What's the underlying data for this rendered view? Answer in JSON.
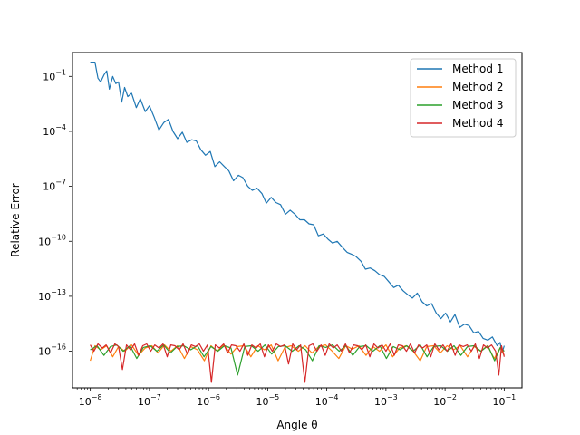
{
  "chart_data": {
    "type": "line",
    "xscale": "log",
    "yscale": "log",
    "xlabel": "Angle θ",
    "ylabel": "Relative Error",
    "xlim": [
      5e-09,
      0.2
    ],
    "ylim": [
      1e-18,
      2
    ],
    "xticks": [
      1e-08,
      1e-07,
      1e-06,
      1e-05,
      0.0001,
      0.001,
      0.01,
      0.1
    ],
    "xtick_labels": [
      {
        "base": "10",
        "exp": "−8"
      },
      {
        "base": "10",
        "exp": "−7"
      },
      {
        "base": "10",
        "exp": "−6"
      },
      {
        "base": "10",
        "exp": "−5"
      },
      {
        "base": "10",
        "exp": "−4"
      },
      {
        "base": "10",
        "exp": "−3"
      },
      {
        "base": "10",
        "exp": "−2"
      },
      {
        "base": "10",
        "exp": "−1"
      }
    ],
    "yticks": [
      1e-16,
      1e-13,
      1e-10,
      1e-07,
      0.0001,
      0.1
    ],
    "ytick_labels": [
      {
        "base": "10",
        "exp": "−16"
      },
      {
        "base": "10",
        "exp": "−13"
      },
      {
        "base": "10",
        "exp": "−10"
      },
      {
        "base": "10",
        "exp": "−7"
      },
      {
        "base": "10",
        "exp": "−4"
      },
      {
        "base": "10",
        "exp": "−1"
      }
    ],
    "grid": false,
    "legend_position": "top-right",
    "series": [
      {
        "name": "Method 1",
        "color": "#1f77b4",
        "x": [
          1e-08,
          1.12e-08,
          1.2e-08,
          1.35e-08,
          1.5e-08,
          1.7e-08,
          1.9e-08,
          2.1e-08,
          2.4e-08,
          2.7e-08,
          3e-08,
          3.4e-08,
          3.8e-08,
          4.3e-08,
          5e-08,
          6e-08,
          7e-08,
          8.5e-08,
          1e-07,
          1.2e-07,
          1.45e-07,
          1.75e-07,
          2.1e-07,
          2.5e-07,
          3e-07,
          3.6e-07,
          4.3e-07,
          5.2e-07,
          6.2e-07,
          7.4e-07,
          8.9e-07,
          1.07e-06,
          1.28e-06,
          1.54e-06,
          1.85e-06,
          2.2e-06,
          2.65e-06,
          3.2e-06,
          3.8e-06,
          4.6e-06,
          5.5e-06,
          6.6e-06,
          8e-06,
          9.5e-06,
          1.15e-05,
          1.38e-05,
          1.65e-05,
          2e-05,
          2.4e-05,
          2.9e-05,
          3.5e-05,
          4.2e-05,
          5e-05,
          6e-05,
          7.2e-05,
          8.7e-05,
          0.000105,
          0.000125,
          0.00015,
          0.00018,
          0.00022,
          0.00026,
          0.00031,
          0.00038,
          0.00045,
          0.00054,
          0.00065,
          0.00078,
          0.00094,
          0.00113,
          0.00135,
          0.00162,
          0.00195,
          0.00235,
          0.0028,
          0.0034,
          0.0041,
          0.0049,
          0.0059,
          0.0071,
          0.0085,
          0.0102,
          0.0123,
          0.0147,
          0.0177,
          0.0212,
          0.0255,
          0.0306,
          0.0367,
          0.044,
          0.053,
          0.063,
          0.076,
          0.085,
          0.092,
          0.1
        ],
        "y": [
          0.6,
          0.6,
          0.6,
          0.08,
          0.05,
          0.12,
          0.2,
          0.02,
          0.1,
          0.04,
          0.05,
          0.004,
          0.025,
          0.008,
          0.012,
          0.002,
          0.006,
          0.0012,
          0.0025,
          0.0006,
          0.00012,
          0.0003,
          0.00045,
          0.0001,
          4e-05,
          9e-05,
          2.5e-05,
          3.5e-05,
          3e-05,
          1e-05,
          5e-06,
          8e-06,
          1.2e-06,
          2.2e-06,
          1.2e-06,
          7e-07,
          2e-07,
          4e-07,
          3e-07,
          1e-07,
          6e-08,
          8e-08,
          4e-08,
          1.2e-08,
          2.5e-08,
          1.3e-08,
          1e-08,
          3e-09,
          5e-09,
          3e-09,
          1.5e-09,
          1.5e-09,
          9e-10,
          8e-10,
          2e-10,
          2.5e-10,
          1.3e-10,
          8e-11,
          1e-10,
          5e-11,
          2.5e-11,
          2e-11,
          1.5e-11,
          8e-12,
          3e-12,
          3.5e-12,
          2.5e-12,
          1.5e-12,
          1.2e-12,
          6e-13,
          3e-13,
          4e-13,
          2e-13,
          1.2e-13,
          8e-14,
          1.5e-13,
          5e-14,
          3e-14,
          4e-14,
          1.2e-14,
          6e-15,
          1.2e-14,
          4e-15,
          1e-14,
          2e-15,
          3e-15,
          2.5e-15,
          1e-15,
          1.2e-15,
          5e-16,
          4e-16,
          6e-16,
          2e-16,
          3e-16,
          8e-17,
          2e-16
        ]
      },
      {
        "name": "Method 2",
        "color": "#ff7f0e",
        "x": [
          1e-08,
          1.2e-08,
          1.5e-08,
          1.9e-08,
          2.4e-08,
          3e-08,
          3.8e-08,
          5e-08,
          6.5e-08,
          8.5e-08,
          1.1e-07,
          1.4e-07,
          1.8e-07,
          2.3e-07,
          3e-07,
          3.9e-07,
          5e-07,
          6.5e-07,
          8.5e-07,
          1.1e-06,
          1.4e-06,
          1.8e-06,
          2.4e-06,
          3.1e-06,
          4e-06,
          5.2e-06,
          6.8e-06,
          8.8e-06,
          1.15e-05,
          1.5e-05,
          1.95e-05,
          2.5e-05,
          3.3e-05,
          4.3e-05,
          5.6e-05,
          7.3e-05,
          9.5e-05,
          0.000124,
          0.00016,
          0.00021,
          0.00027,
          0.00035,
          0.00046,
          0.0006,
          0.00078,
          0.001,
          0.0013,
          0.0017,
          0.0022,
          0.0029,
          0.0038,
          0.0049,
          0.0064,
          0.0083,
          0.0108,
          0.014,
          0.018,
          0.024,
          0.031,
          0.04,
          0.052,
          0.068,
          0.085,
          0.1
        ],
        "y": [
          3e-17,
          2e-16,
          1.2e-16,
          2e-16,
          5e-17,
          1.8e-16,
          1e-16,
          2.2e-16,
          6e-17,
          1.5e-16,
          2e-16,
          8e-17,
          2.2e-16,
          1e-16,
          2e-16,
          4e-17,
          1.8e-16,
          1.2e-16,
          3e-17,
          2e-16,
          1e-16,
          2.2e-16,
          7e-17,
          1.8e-16,
          2e-16,
          5e-17,
          2e-16,
          1.2e-16,
          2.2e-16,
          3e-17,
          1.6e-16,
          2e-16,
          1e-16,
          2e-16,
          8e-17,
          1.8e-16,
          2.2e-16,
          1e-16,
          4e-17,
          2e-16,
          1.3e-16,
          2e-16,
          6e-17,
          1.8e-16,
          1e-16,
          2.2e-16,
          5e-17,
          1.5e-16,
          2e-16,
          1e-16,
          3e-17,
          1.8e-16,
          2e-16,
          8e-17,
          2e-16,
          1.2e-16,
          2e-16,
          5e-17,
          1.8e-16,
          1e-16,
          2e-16,
          4e-17,
          1.5e-16,
          6e-17
        ]
      },
      {
        "name": "Method 3",
        "color": "#2ca02c",
        "x": [
          1e-08,
          1.3e-08,
          1.7e-08,
          2.2e-08,
          2.8e-08,
          3.6e-08,
          4.7e-08,
          6.1e-08,
          7.9e-08,
          1.03e-07,
          1.34e-07,
          1.74e-07,
          2.26e-07,
          2.94e-07,
          3.8e-07,
          5e-07,
          6.5e-07,
          8.4e-07,
          1.1e-06,
          1.43e-06,
          1.86e-06,
          2.4e-06,
          3.1e-06,
          4.1e-06,
          5.3e-06,
          6.9e-06,
          9e-06,
          1.17e-05,
          1.52e-05,
          1.98e-05,
          2.6e-05,
          3.4e-05,
          4.4e-05,
          5.7e-05,
          7.4e-05,
          9.6e-05,
          0.000125,
          0.000162,
          0.00021,
          0.000275,
          0.00036,
          0.000465,
          0.0006,
          0.00079,
          0.00102,
          0.00133,
          0.00173,
          0.00225,
          0.0029,
          0.0038,
          0.00495,
          0.0064,
          0.0084,
          0.0109,
          0.0142,
          0.0185,
          0.024,
          0.031,
          0.0405,
          0.053,
          0.069,
          0.086,
          0.1
        ],
        "y": [
          1.2e-16,
          2e-16,
          6e-17,
          1.8e-16,
          2.2e-16,
          1e-16,
          2e-16,
          4e-17,
          1.6e-16,
          2e-16,
          1e-16,
          2.2e-16,
          8e-17,
          1.8e-16,
          2e-16,
          1.2e-16,
          2e-16,
          5e-17,
          1.8e-16,
          1e-16,
          2e-16,
          1.5e-16,
          5e-18,
          1.8e-16,
          2e-16,
          1e-16,
          2.2e-16,
          7e-17,
          1.8e-16,
          2e-16,
          1e-16,
          2e-16,
          1.2e-16,
          3e-17,
          2e-16,
          1.6e-16,
          2.2e-16,
          1e-16,
          2e-16,
          6e-17,
          1.8e-16,
          2e-16,
          1e-16,
          2e-16,
          4e-17,
          1.8e-16,
          1.2e-16,
          2e-16,
          1e-16,
          2.2e-16,
          5e-17,
          1.8e-16,
          2e-16,
          1e-16,
          2e-16,
          6e-17,
          1.8e-16,
          2e-16,
          1e-16,
          2e-16,
          3e-17,
          1.6e-16,
          1e-16
        ]
      },
      {
        "name": "Method 4",
        "color": "#d62728",
        "x": [
          1e-08,
          1.15e-08,
          1.35e-08,
          1.6e-08,
          1.85e-08,
          2.2e-08,
          2.6e-08,
          3e-08,
          3.5e-08,
          4.1e-08,
          4.8e-08,
          5.6e-08,
          6.6e-08,
          7.7e-08,
          9e-08,
          1.05e-07,
          1.23e-07,
          1.45e-07,
          1.7e-07,
          2e-07,
          2.3e-07,
          2.7e-07,
          3.2e-07,
          3.7e-07,
          4.4e-07,
          5.1e-07,
          6e-07,
          7e-07,
          8.2e-07,
          9.6e-07,
          1.12e-06,
          1.3e-06,
          1.53e-06,
          1.8e-06,
          2.1e-06,
          2.45e-06,
          2.9e-06,
          3.4e-06,
          3.95e-06,
          4.6e-06,
          5.4e-06,
          6.4e-06,
          7.5e-06,
          8.8e-06,
          1.03e-05,
          1.2e-05,
          1.4e-05,
          1.65e-05,
          1.93e-05,
          2.25e-05,
          2.65e-05,
          3.1e-05,
          3.6e-05,
          4.25e-05,
          5e-05,
          5.8e-05,
          6.8e-05,
          8e-05,
          9.4e-05,
          0.00011,
          0.000129,
          0.00015,
          0.000177,
          0.000207,
          0.000242,
          0.000284,
          0.000332,
          0.00039,
          0.000455,
          0.000535,
          0.000625,
          0.00073,
          0.00086,
          0.001,
          0.00118,
          0.00138,
          0.00162,
          0.0019,
          0.00222,
          0.0026,
          0.00305,
          0.00357,
          0.00418,
          0.0049,
          0.00573,
          0.0067,
          0.00785,
          0.0092,
          0.0108,
          0.0126,
          0.0148,
          0.0173,
          0.0203,
          0.0237,
          0.0278,
          0.0325,
          0.0381,
          0.0446,
          0.0522,
          0.061,
          0.0715,
          0.081,
          0.09,
          0.1
        ],
        "y": [
          2.2e-16,
          1e-16,
          2.5e-16,
          1.5e-16,
          2.2e-16,
          8e-17,
          2.5e-16,
          1.8e-16,
          1e-17,
          2.2e-16,
          1.2e-16,
          2.5e-16,
          6e-17,
          2e-16,
          2.5e-16,
          1e-16,
          2.2e-16,
          1.5e-16,
          2.5e-16,
          5e-17,
          2.2e-16,
          2e-16,
          1.2e-16,
          2.5e-16,
          7e-17,
          2.2e-16,
          1.8e-16,
          2.5e-16,
          1e-16,
          2.2e-16,
          2e-18,
          2.2e-16,
          1.5e-16,
          2.5e-16,
          8e-17,
          2.2e-16,
          2e-16,
          1e-16,
          2.5e-16,
          6e-17,
          2.2e-16,
          1.5e-16,
          2.5e-16,
          5e-17,
          2.2e-16,
          1e-16,
          2.5e-16,
          1.8e-16,
          2.2e-16,
          2e-17,
          2.5e-16,
          1.2e-16,
          2.2e-16,
          2e-18,
          2e-16,
          2.5e-16,
          1e-16,
          2.2e-16,
          6e-17,
          2.5e-16,
          1.5e-16,
          2.2e-16,
          1e-16,
          2.5e-16,
          8e-17,
          2.2e-16,
          2e-16,
          1.2e-16,
          2.2e-16,
          5e-17,
          2.5e-16,
          1.5e-16,
          2.2e-16,
          1e-16,
          2.5e-16,
          6e-17,
          2.2e-16,
          2e-16,
          1e-16,
          2.5e-16,
          8e-17,
          2.2e-16,
          1.5e-16,
          2.2e-16,
          5e-17,
          2.5e-16,
          1.2e-16,
          2.2e-16,
          1e-16,
          2.5e-16,
          6e-17,
          2.2e-16,
          1.8e-16,
          2.2e-16,
          1e-16,
          2.5e-16,
          4e-17,
          2.2e-16,
          1.5e-16,
          2.2e-16,
          1e-16,
          5e-18,
          2e-16,
          5e-17
        ]
      }
    ]
  }
}
